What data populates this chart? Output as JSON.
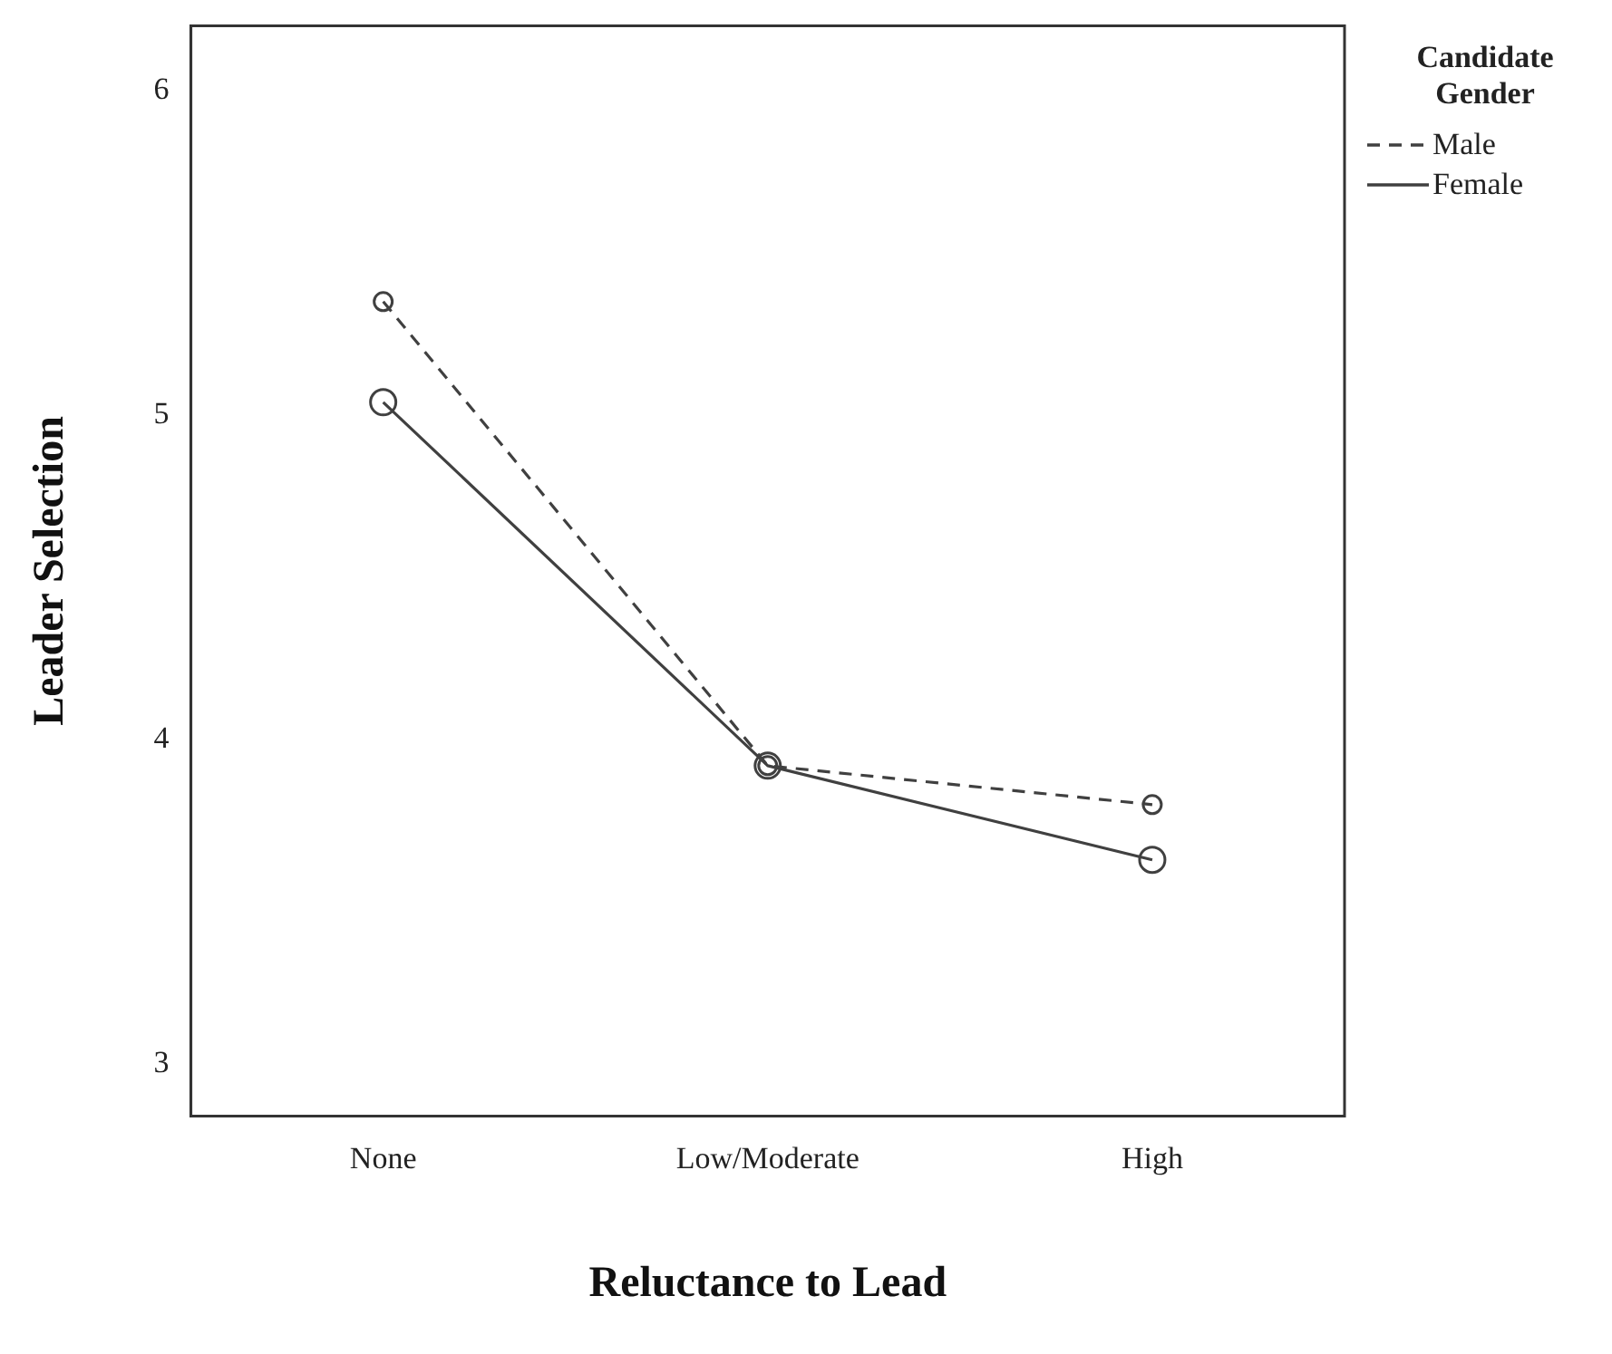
{
  "chart_data": {
    "type": "line",
    "xlabel": "Reluctance to Lead",
    "ylabel": "Leader Selection",
    "legend_title": "Candidate Gender",
    "categories": [
      "None",
      "Low/Moderate",
      "High"
    ],
    "series": [
      {
        "name": "Male",
        "color": "#404040",
        "values": [
          5.35,
          3.92,
          3.8
        ],
        "line_style": "dashed"
      },
      {
        "name": "Female",
        "color": "#404040",
        "values": [
          5.04,
          3.92,
          3.63
        ],
        "line_style": "solid"
      }
    ],
    "ylim": [
      2.84,
      6.2
    ],
    "yticks": [
      3,
      4,
      5,
      6
    ],
    "grid": false,
    "legend": "top right",
    "marker": "circle"
  }
}
